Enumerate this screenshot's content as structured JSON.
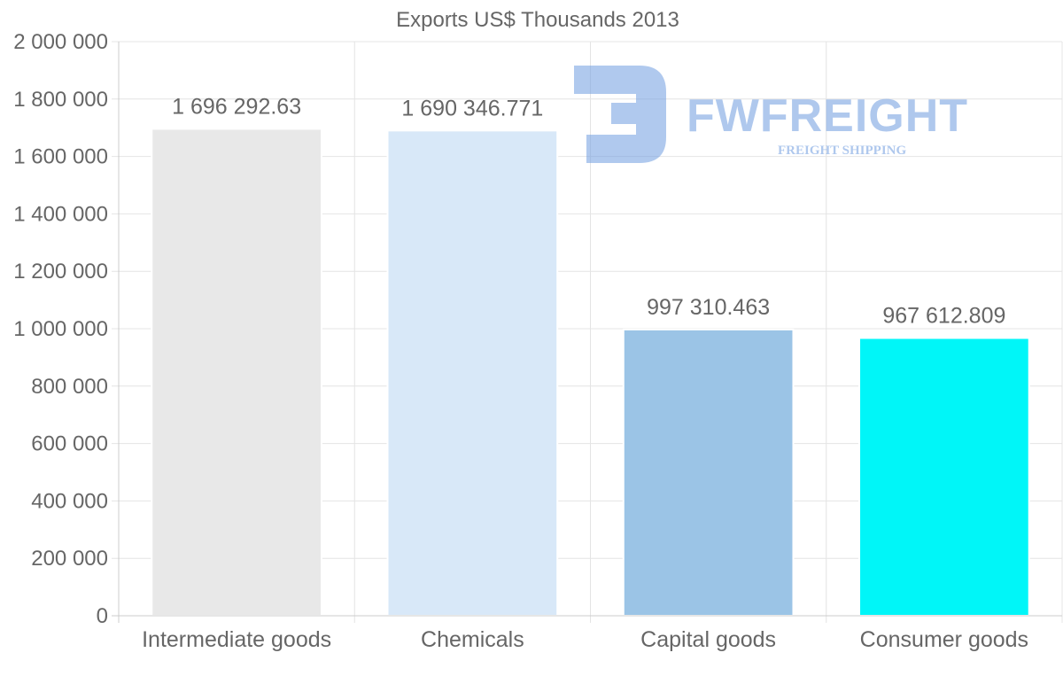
{
  "chart_data": {
    "type": "bar",
    "title": "Exports US$ Thousands 2013",
    "categories": [
      "Intermediate goods",
      "Chemicals",
      "Capital goods",
      "Consumer goods"
    ],
    "values": [
      1696292.63,
      1690346.771,
      997310.463,
      967612.809
    ],
    "value_labels": [
      "1 696 292.63",
      "1 690 346.771",
      "997 310.463",
      "967 612.809"
    ],
    "bar_colors": [
      "#e8e8e8",
      "#d8e8f8",
      "#9bc4e6",
      "#00f6f8"
    ],
    "ylim": [
      0,
      2000000
    ],
    "yticks": [
      0,
      200000,
      400000,
      600000,
      800000,
      1000000,
      1200000,
      1400000,
      1600000,
      1800000,
      2000000
    ],
    "ytick_labels": [
      "0",
      "200 000",
      "400 000",
      "600 000",
      "800 000",
      "1 000 000",
      "1 200 000",
      "1 400 000",
      "1 600 000",
      "1 800 000",
      "2 000 000"
    ],
    "xlabel": "",
    "ylabel": "",
    "grid": true,
    "legend": "none"
  },
  "watermark": {
    "name": "FWFREIGHT",
    "tagline": "FREIGHT SHIPPING",
    "color": "#6f9ce0"
  }
}
